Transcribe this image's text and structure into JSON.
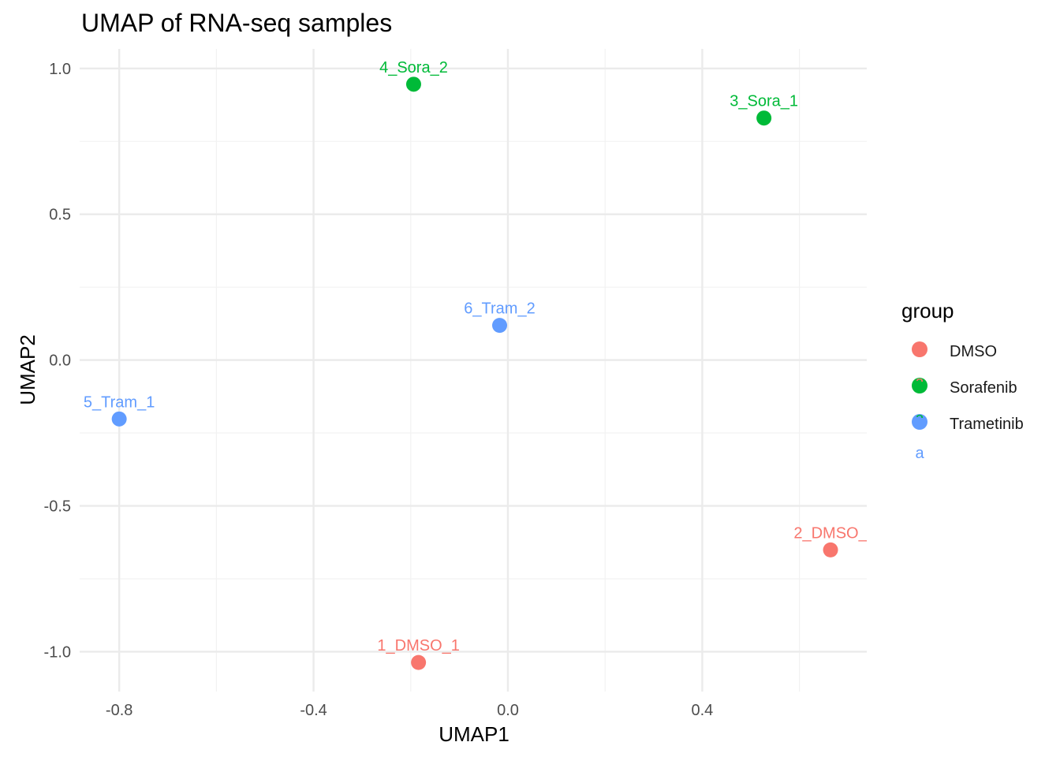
{
  "chart_data": {
    "type": "scatter",
    "title": "UMAP of RNA-seq samples",
    "xlabel": "UMAP1",
    "ylabel": "UMAP2",
    "xlim": [
      -0.8814,
      0.7386
    ],
    "ylim": [
      -1.1368,
      1.0672
    ],
    "x_ticks": [
      -0.8,
      -0.4,
      0.0,
      0.4
    ],
    "x_tick_labels": [
      "-0.8",
      "-0.4",
      "0.0",
      "0.4"
    ],
    "y_ticks": [
      -1.0,
      -0.5,
      0.0,
      0.5,
      1.0
    ],
    "y_tick_labels": [
      "-1.0",
      "-0.5",
      "0.0",
      "0.5",
      "1.0"
    ],
    "grid": true,
    "legend": {
      "title": "group",
      "placement": "right",
      "glyph_stub": "a",
      "entries": [
        {
          "name": "DMSO",
          "color": "#F8766D"
        },
        {
          "name": "Sorafenib",
          "color": "#00BA38"
        },
        {
          "name": "Trametinib",
          "color": "#619CFF"
        }
      ]
    },
    "points": [
      {
        "label": "1_DMSO_1",
        "group": "DMSO",
        "x": -0.184,
        "y": -1.037
      },
      {
        "label": "2_DMSO_",
        "group": "DMSO",
        "x": 0.664,
        "y": -0.651
      },
      {
        "label": "3_Sora_1",
        "group": "Sorafenib",
        "x": 0.527,
        "y": 0.83
      },
      {
        "label": "4_Sora_2",
        "group": "Sorafenib",
        "x": -0.194,
        "y": 0.946
      },
      {
        "label": "5_Tram_1",
        "group": "Trametinib",
        "x": -0.8,
        "y": -0.202
      },
      {
        "label": "6_Tram_2",
        "group": "Trametinib",
        "x": -0.017,
        "y": 0.119
      }
    ]
  }
}
